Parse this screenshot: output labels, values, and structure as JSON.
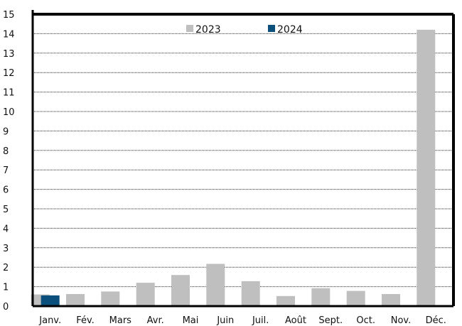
{
  "chart_data": {
    "type": "bar",
    "categories": [
      "Janv.",
      "Fév.",
      "Mars",
      "Avr.",
      "Mai",
      "Juin",
      "Juil.",
      "Août",
      "Sept.",
      "Oct.",
      "Nov.",
      "Déc."
    ],
    "series": [
      {
        "name": "2023",
        "color": "#bfbfbf",
        "values": [
          0.6,
          0.62,
          0.75,
          1.2,
          1.6,
          2.17,
          1.28,
          0.52,
          0.92,
          0.78,
          0.62,
          14.2
        ]
      },
      {
        "name": "2024",
        "color": "#0b4f7c",
        "values": [
          0.55,
          null,
          null,
          null,
          null,
          null,
          null,
          null,
          null,
          null,
          null,
          null
        ]
      }
    ],
    "yticks": [
      "0",
      "1",
      "2",
      "3",
      "4",
      "5",
      "6",
      "7",
      "8",
      "9",
      "10",
      "11",
      "12",
      "13",
      "14",
      "15"
    ],
    "ylim": [
      0,
      15
    ],
    "grid": true,
    "legend_position": "top-center",
    "title": "",
    "xlabel": "",
    "ylabel": ""
  }
}
